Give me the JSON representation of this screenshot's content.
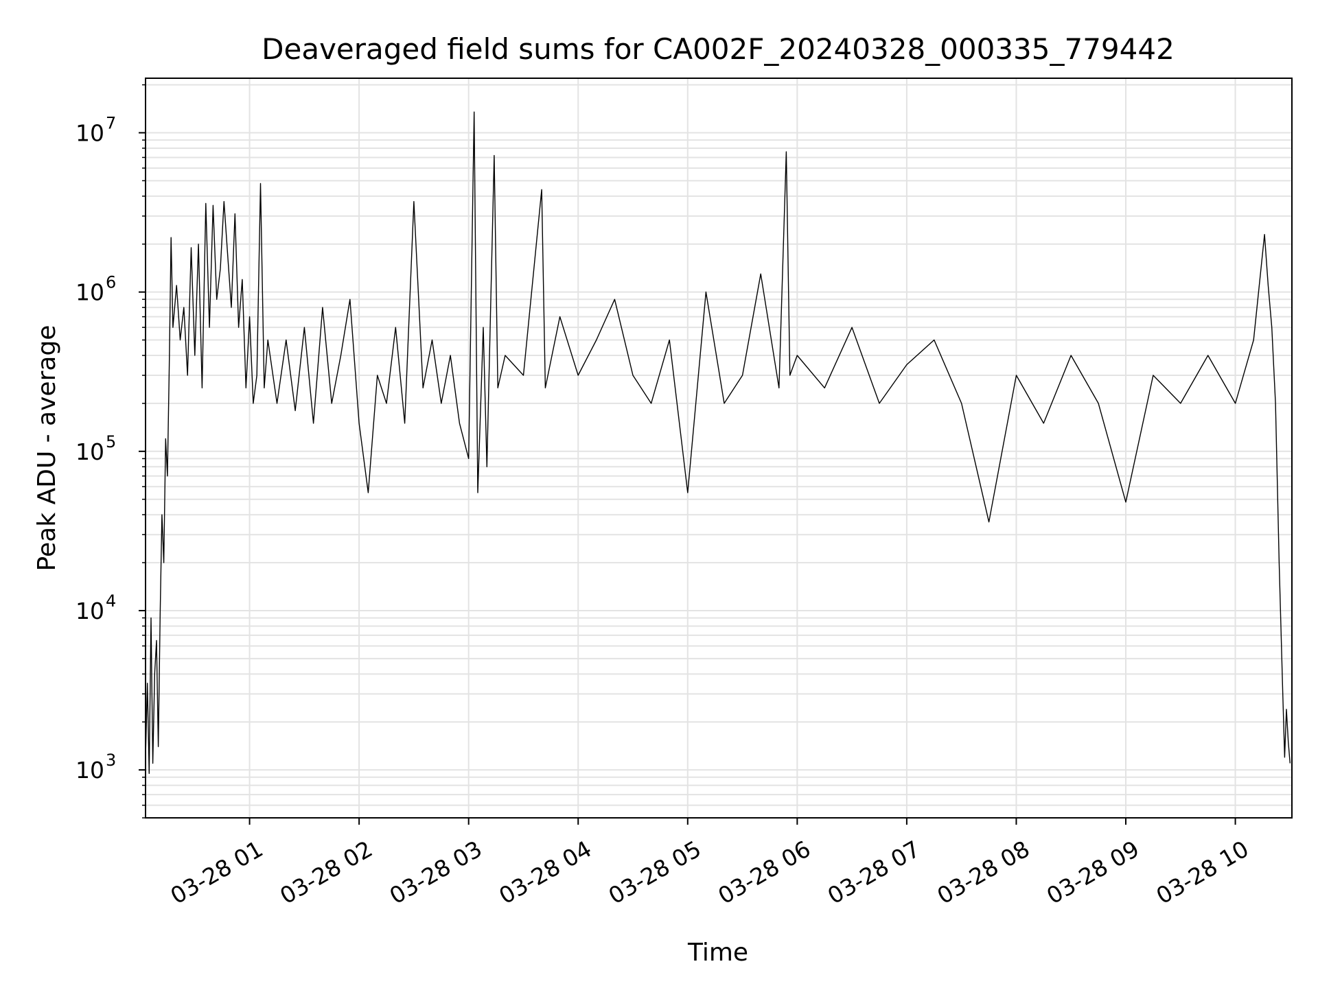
{
  "chart_data": {
    "type": "line",
    "title": "Deaveraged field sums for CA002F_20240328_000335_779442",
    "xlabel": "Time",
    "ylabel": "Peak ADU - average",
    "y_scale": "log",
    "ylim": [
      500,
      22000000
    ],
    "xlim": [
      "2024-03-28 00:03",
      "2024-03-28 10:31"
    ],
    "grid": true,
    "line_color": "#000000",
    "x_ticks": [
      "03-28 01",
      "03-28 02",
      "03-28 03",
      "03-28 04",
      "03-28 05",
      "03-28 06",
      "03-28 07",
      "03-28 08",
      "03-28 09",
      "03-28 10"
    ],
    "y_ticks": [
      {
        "base": "10",
        "exp": "3",
        "value": 1000
      },
      {
        "base": "10",
        "exp": "4",
        "value": 10000
      },
      {
        "base": "10",
        "exp": "5",
        "value": 100000
      },
      {
        "base": "10",
        "exp": "6",
        "value": 1000000
      },
      {
        "base": "10",
        "exp": "7",
        "value": 10000000
      }
    ],
    "series": [
      {
        "points": [
          [
            "2024-03-28 00:03",
            1200
          ],
          [
            "2024-03-28 00:04",
            3500
          ],
          [
            "2024-03-28 00:05",
            950
          ],
          [
            "2024-03-28 00:06",
            9000
          ],
          [
            "2024-03-28 00:07",
            1100
          ],
          [
            "2024-03-28 00:08",
            4000
          ],
          [
            "2024-03-28 00:09",
            6500
          ],
          [
            "2024-03-28 00:10",
            1400
          ],
          [
            "2024-03-28 00:11",
            9500
          ],
          [
            "2024-03-28 00:12",
            40000
          ],
          [
            "2024-03-28 00:13",
            20000
          ],
          [
            "2024-03-28 00:14",
            120000
          ],
          [
            "2024-03-28 00:15",
            70000
          ],
          [
            "2024-03-28 00:16",
            350000
          ],
          [
            "2024-03-28 00:17",
            2200000
          ],
          [
            "2024-03-28 00:18",
            600000
          ],
          [
            "2024-03-28 00:20",
            1100000
          ],
          [
            "2024-03-28 00:22",
            500000
          ],
          [
            "2024-03-28 00:24",
            800000
          ],
          [
            "2024-03-28 00:26",
            300000
          ],
          [
            "2024-03-28 00:28",
            1900000
          ],
          [
            "2024-03-28 00:30",
            400000
          ],
          [
            "2024-03-28 00:32",
            2000000
          ],
          [
            "2024-03-28 00:34",
            250000
          ],
          [
            "2024-03-28 00:36",
            3600000
          ],
          [
            "2024-03-28 00:38",
            600000
          ],
          [
            "2024-03-28 00:40",
            3500000
          ],
          [
            "2024-03-28 00:42",
            900000
          ],
          [
            "2024-03-28 00:44",
            1400000
          ],
          [
            "2024-03-28 00:46",
            3700000
          ],
          [
            "2024-03-28 00:48",
            1700000
          ],
          [
            "2024-03-28 00:50",
            800000
          ],
          [
            "2024-03-28 00:52",
            3100000
          ],
          [
            "2024-03-28 00:54",
            600000
          ],
          [
            "2024-03-28 00:56",
            1200000
          ],
          [
            "2024-03-28 00:58",
            250000
          ],
          [
            "2024-03-28 01:00",
            700000
          ],
          [
            "2024-03-28 01:02",
            200000
          ],
          [
            "2024-03-28 01:04",
            300000
          ],
          [
            "2024-03-28 01:06",
            4800000
          ],
          [
            "2024-03-28 01:08",
            250000
          ],
          [
            "2024-03-28 01:10",
            500000
          ],
          [
            "2024-03-28 01:15",
            200000
          ],
          [
            "2024-03-28 01:20",
            500000
          ],
          [
            "2024-03-28 01:25",
            180000
          ],
          [
            "2024-03-28 01:30",
            600000
          ],
          [
            "2024-03-28 01:35",
            150000
          ],
          [
            "2024-03-28 01:40",
            800000
          ],
          [
            "2024-03-28 01:45",
            200000
          ],
          [
            "2024-03-28 01:50",
            400000
          ],
          [
            "2024-03-28 01:55",
            900000
          ],
          [
            "2024-03-28 02:00",
            150000
          ],
          [
            "2024-03-28 02:05",
            55000
          ],
          [
            "2024-03-28 02:10",
            300000
          ],
          [
            "2024-03-28 02:15",
            200000
          ],
          [
            "2024-03-28 02:20",
            600000
          ],
          [
            "2024-03-28 02:25",
            150000
          ],
          [
            "2024-03-28 02:30",
            3700000
          ],
          [
            "2024-03-28 02:35",
            250000
          ],
          [
            "2024-03-28 02:40",
            500000
          ],
          [
            "2024-03-28 02:45",
            200000
          ],
          [
            "2024-03-28 02:50",
            400000
          ],
          [
            "2024-03-28 02:55",
            150000
          ],
          [
            "2024-03-28 03:00",
            90000
          ],
          [
            "2024-03-28 03:03",
            13500000
          ],
          [
            "2024-03-28 03:05",
            55000
          ],
          [
            "2024-03-28 03:08",
            600000
          ],
          [
            "2024-03-28 03:10",
            80000
          ],
          [
            "2024-03-28 03:14",
            7200000
          ],
          [
            "2024-03-28 03:16",
            250000
          ],
          [
            "2024-03-28 03:20",
            400000
          ],
          [
            "2024-03-28 03:30",
            300000
          ],
          [
            "2024-03-28 03:40",
            4400000
          ],
          [
            "2024-03-28 03:42",
            250000
          ],
          [
            "2024-03-28 03:50",
            700000
          ],
          [
            "2024-03-28 04:00",
            300000
          ],
          [
            "2024-03-28 04:10",
            500000
          ],
          [
            "2024-03-28 04:20",
            900000
          ],
          [
            "2024-03-28 04:30",
            300000
          ],
          [
            "2024-03-28 04:40",
            200000
          ],
          [
            "2024-03-28 04:50",
            500000
          ],
          [
            "2024-03-28 05:00",
            55000
          ],
          [
            "2024-03-28 05:10",
            1000000
          ],
          [
            "2024-03-28 05:20",
            200000
          ],
          [
            "2024-03-28 05:30",
            300000
          ],
          [
            "2024-03-28 05:40",
            1300000
          ],
          [
            "2024-03-28 05:50",
            250000
          ],
          [
            "2024-03-28 05:54",
            7600000
          ],
          [
            "2024-03-28 05:56",
            300000
          ],
          [
            "2024-03-28 06:00",
            400000
          ],
          [
            "2024-03-28 06:15",
            250000
          ],
          [
            "2024-03-28 06:30",
            600000
          ],
          [
            "2024-03-28 06:45",
            200000
          ],
          [
            "2024-03-28 07:00",
            350000
          ],
          [
            "2024-03-28 07:15",
            500000
          ],
          [
            "2024-03-28 07:30",
            200000
          ],
          [
            "2024-03-28 07:45",
            36000
          ],
          [
            "2024-03-28 08:00",
            300000
          ],
          [
            "2024-03-28 08:15",
            150000
          ],
          [
            "2024-03-28 08:30",
            400000
          ],
          [
            "2024-03-28 08:45",
            200000
          ],
          [
            "2024-03-28 09:00",
            48000
          ],
          [
            "2024-03-28 09:15",
            300000
          ],
          [
            "2024-03-28 09:30",
            200000
          ],
          [
            "2024-03-28 09:45",
            400000
          ],
          [
            "2024-03-28 10:00",
            200000
          ],
          [
            "2024-03-28 10:10",
            500000
          ],
          [
            "2024-03-28 10:16",
            2300000
          ],
          [
            "2024-03-28 10:18",
            1100000
          ],
          [
            "2024-03-28 10:20",
            600000
          ],
          [
            "2024-03-28 10:22",
            200000
          ],
          [
            "2024-03-28 10:24",
            20000
          ],
          [
            "2024-03-28 10:26",
            3000
          ],
          [
            "2024-03-28 10:27",
            1200
          ],
          [
            "2024-03-28 10:28",
            2400
          ],
          [
            "2024-03-28 10:29",
            1500
          ],
          [
            "2024-03-28 10:30",
            1100
          ]
        ]
      }
    ]
  }
}
